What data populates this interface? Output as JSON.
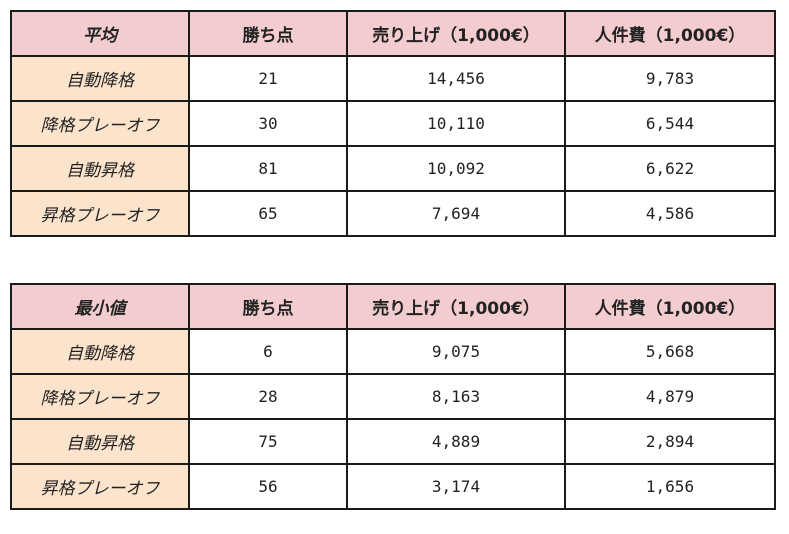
{
  "tables": [
    {
      "header": [
        "平均",
        "勝ち点",
        "売り上げ（1,000€）",
        "人件費（1,000€）"
      ],
      "rows": [
        [
          "自動降格",
          "21",
          "14,456",
          "9,783"
        ],
        [
          "降格プレーオフ",
          "30",
          "10,110",
          "6,544"
        ],
        [
          "自動昇格",
          "81",
          "10,092",
          "6,622"
        ],
        [
          "昇格プレーオフ",
          "65",
          "7,694",
          "4,586"
        ]
      ]
    },
    {
      "header": [
        "最小値",
        "勝ち点",
        "売り上げ（1,000€）",
        "人件費（1,000€）"
      ],
      "rows": [
        [
          "自動降格",
          "6",
          "9,075",
          "5,668"
        ],
        [
          "降格プレーオフ",
          "28",
          "8,163",
          "4,879"
        ],
        [
          "自動昇格",
          "75",
          "4,889",
          "2,894"
        ],
        [
          "昇格プレーオフ",
          "56",
          "3,174",
          "1,656"
        ]
      ]
    }
  ],
  "colors": {
    "header_bg": "#f2cccf",
    "row_label_bg": "#fce4cc",
    "border": "#1a1a1a"
  }
}
